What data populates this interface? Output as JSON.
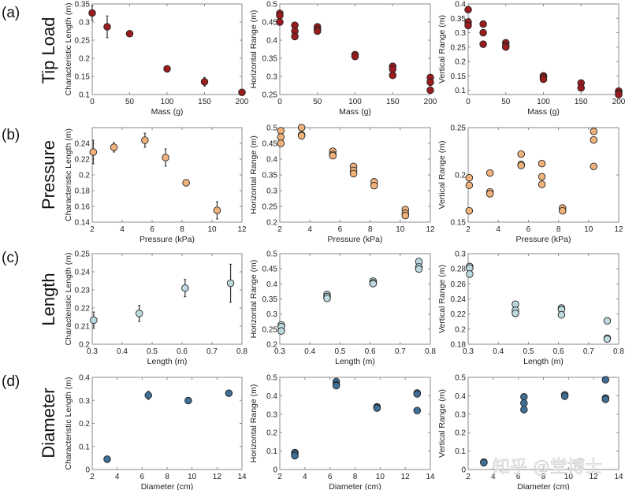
{
  "figure": {
    "rows": [
      {
        "letter": "(a)",
        "label": "Tip Load",
        "color": "#9b1c1f"
      },
      {
        "letter": "(b)",
        "label": "Pressure",
        "color": "#f0b27a"
      },
      {
        "letter": "(c)",
        "label": "Length",
        "color": "#bcd9df"
      },
      {
        "letter": "(d)",
        "label": "Diameter",
        "color": "#3f6e96"
      }
    ],
    "watermark": "知乎 @堂博士",
    "marker_edge_color": "#222222",
    "errorbar_color": "#333333",
    "frame_color": "#8a8a8a"
  },
  "chart_data": [
    {
      "id": "a-char",
      "row": 0,
      "col": 0,
      "type": "scatter",
      "xlabel": "Mass (g)",
      "ylabel": "Characteristic Length (m)",
      "xlim": [
        0,
        200
      ],
      "ylim": [
        0.1,
        0.35
      ],
      "xticks": [
        0,
        50,
        100,
        150,
        200
      ],
      "xticklabels": [
        "0",
        "50",
        "100",
        "150",
        "200"
      ],
      "yticks": [
        0.1,
        0.15,
        0.2,
        0.25,
        0.3,
        0.35
      ],
      "yticklabels": [
        "0.1",
        "0.15",
        "0.2",
        "0.25",
        "0.3",
        "0.35"
      ],
      "points": [
        [
          0,
          0.325
        ],
        [
          20,
          0.287
        ],
        [
          50,
          0.268
        ],
        [
          100,
          0.171
        ],
        [
          150,
          0.135
        ],
        [
          200,
          0.106
        ]
      ],
      "errors": [
        0.02,
        0.03,
        0.0,
        0.0,
        0.012,
        0.0
      ]
    },
    {
      "id": "a-horiz",
      "row": 0,
      "col": 1,
      "type": "scatter",
      "xlabel": "Mass (g)",
      "ylabel": "Horizontal Range (m)",
      "xlim": [
        0,
        200
      ],
      "ylim": [
        0.25,
        0.5
      ],
      "xticks": [
        0,
        50,
        100,
        150,
        200
      ],
      "xticklabels": [
        "0",
        "50",
        "100",
        "150",
        "200"
      ],
      "yticks": [
        0.25,
        0.3,
        0.35,
        0.4,
        0.45,
        0.5
      ],
      "yticklabels": [
        "0.25",
        "0.3",
        "0.35",
        "0.4",
        "0.45",
        "0.5"
      ],
      "points": [
        [
          0,
          0.474
        ],
        [
          0,
          0.468
        ],
        [
          0,
          0.45
        ],
        [
          20,
          0.441
        ],
        [
          20,
          0.425
        ],
        [
          20,
          0.41
        ],
        [
          50,
          0.437
        ],
        [
          50,
          0.43
        ],
        [
          50,
          0.425
        ],
        [
          100,
          0.36
        ],
        [
          100,
          0.355
        ],
        [
          150,
          0.328
        ],
        [
          150,
          0.32
        ],
        [
          150,
          0.303
        ],
        [
          200,
          0.297
        ],
        [
          200,
          0.284
        ],
        [
          200,
          0.262
        ]
      ]
    },
    {
      "id": "a-vert",
      "row": 0,
      "col": 2,
      "type": "scatter",
      "xlabel": "Mass (g)",
      "ylabel": "Vertical Range (m)",
      "xlim": [
        0,
        200
      ],
      "ylim": [
        0.085,
        0.4
      ],
      "xticks": [
        0,
        50,
        100,
        150,
        200
      ],
      "xticklabels": [
        "0",
        "50",
        "100",
        "150",
        "200"
      ],
      "yticks": [
        0.1,
        0.15,
        0.2,
        0.25,
        0.3,
        0.35,
        0.4
      ],
      "yticklabels": [
        "0.1",
        "0.15",
        "0.2",
        "0.25",
        "0.3",
        "0.35",
        "0.4"
      ],
      "points": [
        [
          0,
          0.38
        ],
        [
          0,
          0.337
        ],
        [
          0,
          0.325
        ],
        [
          20,
          0.33
        ],
        [
          20,
          0.3
        ],
        [
          20,
          0.26
        ],
        [
          50,
          0.265
        ],
        [
          50,
          0.255
        ],
        [
          50,
          0.25
        ],
        [
          100,
          0.15
        ],
        [
          100,
          0.145
        ],
        [
          100,
          0.138
        ],
        [
          150,
          0.125
        ],
        [
          150,
          0.108
        ],
        [
          200,
          0.097
        ],
        [
          200,
          0.09
        ],
        [
          200,
          0.085
        ]
      ]
    },
    {
      "id": "b-char",
      "row": 1,
      "col": 0,
      "type": "scatter",
      "xlabel": "Pressure (kPa)",
      "ylabel": "Characteristic Length (m)",
      "xlim": [
        2,
        12
      ],
      "ylim": [
        0.14,
        0.26
      ],
      "xticks": [
        2,
        4,
        6,
        8,
        10,
        12
      ],
      "xticklabels": [
        "2",
        "4",
        "6",
        "8",
        "10",
        "12"
      ],
      "yticks": [
        0.14,
        0.16,
        0.18,
        0.2,
        0.22,
        0.24
      ],
      "yticklabels": [
        "0.14",
        "0.16",
        "0.18",
        "0.2",
        "0.22",
        "0.24"
      ],
      "points": [
        [
          2.07,
          0.229
        ],
        [
          3.45,
          0.235
        ],
        [
          5.52,
          0.244
        ],
        [
          6.9,
          0.222
        ],
        [
          8.27,
          0.19
        ],
        [
          10.34,
          0.155
        ]
      ],
      "errors": [
        0.015,
        0.006,
        0.009,
        0.011,
        0.002,
        0.011
      ]
    },
    {
      "id": "b-horiz",
      "row": 1,
      "col": 1,
      "type": "scatter",
      "xlabel": "Pressure (kPa)",
      "ylabel": "Horizontal Range (m)",
      "xlim": [
        2,
        12
      ],
      "ylim": [
        0.2,
        0.5
      ],
      "xticks": [
        2,
        4,
        6,
        8,
        10,
        12
      ],
      "xticklabels": [
        "2",
        "4",
        "6",
        "8",
        "10",
        "12"
      ],
      "yticks": [
        0.2,
        0.25,
        0.3,
        0.35,
        0.4,
        0.45,
        0.5
      ],
      "yticklabels": [
        "0.2",
        "0.25",
        "0.3",
        "0.35",
        "0.4",
        "0.45",
        "0.5"
      ],
      "points": [
        [
          2.07,
          0.49
        ],
        [
          2.07,
          0.47
        ],
        [
          2.07,
          0.45
        ],
        [
          3.45,
          0.5
        ],
        [
          3.45,
          0.477
        ],
        [
          3.45,
          0.474
        ],
        [
          5.52,
          0.425
        ],
        [
          5.52,
          0.415
        ],
        [
          5.52,
          0.411
        ],
        [
          6.9,
          0.377
        ],
        [
          6.9,
          0.364
        ],
        [
          6.9,
          0.354
        ],
        [
          8.27,
          0.328
        ],
        [
          8.27,
          0.316
        ],
        [
          10.34,
          0.24
        ],
        [
          10.34,
          0.228
        ],
        [
          10.34,
          0.221
        ]
      ]
    },
    {
      "id": "b-vert",
      "row": 1,
      "col": 2,
      "type": "scatter",
      "xlabel": "Pressure (kPa)",
      "ylabel": "Vertical Range (m)",
      "xlim": [
        2,
        12
      ],
      "ylim": [
        0.15,
        0.25
      ],
      "xticks": [
        2,
        4,
        6,
        8,
        10,
        12
      ],
      "xticklabels": [
        "2",
        "4",
        "6",
        "8",
        "10",
        "12"
      ],
      "yticks": [
        0.15,
        0.2,
        0.25
      ],
      "yticklabels": [
        "0.15",
        "0.2",
        "0.25"
      ],
      "points": [
        [
          2.07,
          0.197
        ],
        [
          2.07,
          0.189
        ],
        [
          2.07,
          0.162
        ],
        [
          3.45,
          0.202
        ],
        [
          3.45,
          0.182
        ],
        [
          3.45,
          0.18
        ],
        [
          5.52,
          0.222
        ],
        [
          5.52,
          0.211
        ],
        [
          5.52,
          0.21
        ],
        [
          6.9,
          0.212
        ],
        [
          6.9,
          0.198
        ],
        [
          6.9,
          0.19
        ],
        [
          8.27,
          0.165
        ],
        [
          8.27,
          0.162
        ],
        [
          10.34,
          0.246
        ],
        [
          10.34,
          0.237
        ],
        [
          10.34,
          0.209
        ]
      ]
    },
    {
      "id": "c-char",
      "row": 2,
      "col": 0,
      "type": "scatter",
      "xlabel": "Length (m)",
      "ylabel": "Characteristic Length (m)",
      "xlim": [
        0.3,
        0.8
      ],
      "ylim": [
        0.2,
        0.25
      ],
      "xticks": [
        0.3,
        0.4,
        0.5,
        0.6,
        0.7,
        0.8
      ],
      "xticklabels": [
        "0.3",
        "0.4",
        "0.5",
        "0.6",
        "0.7",
        "0.8"
      ],
      "yticks": [
        0.2,
        0.21,
        0.22,
        0.23,
        0.24,
        0.25
      ],
      "yticklabels": [
        "0.2",
        "0.21",
        "0.22",
        "0.23",
        "0.24",
        "0.25"
      ],
      "points": [
        [
          0.305,
          0.2133
        ],
        [
          0.457,
          0.217
        ],
        [
          0.61,
          0.231
        ],
        [
          0.762,
          0.2337
        ]
      ],
      "errors": [
        0.0045,
        0.0045,
        0.0048,
        0.0105
      ]
    },
    {
      "id": "c-horiz",
      "row": 2,
      "col": 1,
      "type": "scatter",
      "xlabel": "Length (m)",
      "ylabel": "Horizontal Range (m)",
      "xlim": [
        0.3,
        0.8
      ],
      "ylim": [
        0.2,
        0.5
      ],
      "xticks": [
        0.3,
        0.4,
        0.5,
        0.6,
        0.7,
        0.8
      ],
      "xticklabels": [
        "0.3",
        "0.4",
        "0.5",
        "0.6",
        "0.7",
        "0.8"
      ],
      "yticks": [
        0.2,
        0.25,
        0.3,
        0.35,
        0.4,
        0.45,
        0.5
      ],
      "yticklabels": [
        "0.2",
        "0.25",
        "0.3",
        "0.35",
        "0.4",
        "0.45",
        "0.5"
      ],
      "points": [
        [
          0.305,
          0.264
        ],
        [
          0.305,
          0.258
        ],
        [
          0.305,
          0.244
        ],
        [
          0.457,
          0.365
        ],
        [
          0.457,
          0.358
        ],
        [
          0.457,
          0.352
        ],
        [
          0.61,
          0.409
        ],
        [
          0.61,
          0.403
        ],
        [
          0.61,
          0.401
        ],
        [
          0.762,
          0.474
        ],
        [
          0.762,
          0.456
        ],
        [
          0.762,
          0.449
        ]
      ]
    },
    {
      "id": "c-vert",
      "row": 2,
      "col": 2,
      "type": "scatter",
      "xlabel": "Length (m)",
      "ylabel": "Vertical Range (m)",
      "xlim": [
        0.3,
        0.8
      ],
      "ylim": [
        0.18,
        0.3
      ],
      "xticks": [
        0.3,
        0.4,
        0.5,
        0.6,
        0.7,
        0.8
      ],
      "xticklabels": [
        "0.3",
        "0.4",
        "0.5",
        "0.6",
        "0.7",
        "0.8"
      ],
      "yticks": [
        0.18,
        0.2,
        0.22,
        0.24,
        0.26,
        0.28,
        0.3
      ],
      "yticklabels": [
        "0.18",
        "0.2",
        "0.22",
        "0.24",
        "0.26",
        "0.28",
        "0.3"
      ],
      "points": [
        [
          0.305,
          0.283
        ],
        [
          0.305,
          0.281
        ],
        [
          0.305,
          0.273
        ],
        [
          0.457,
          0.233
        ],
        [
          0.457,
          0.225
        ],
        [
          0.457,
          0.221
        ],
        [
          0.61,
          0.228
        ],
        [
          0.61,
          0.226
        ],
        [
          0.61,
          0.219
        ],
        [
          0.762,
          0.211
        ],
        [
          0.762,
          0.188
        ],
        [
          0.762,
          0.187
        ]
      ]
    },
    {
      "id": "d-char",
      "row": 3,
      "col": 0,
      "type": "scatter",
      "xlabel": "Diameter (cm)",
      "ylabel": "Characteristic Length (m)",
      "xlim": [
        2,
        14
      ],
      "ylim": [
        0,
        0.4
      ],
      "xticks": [
        2,
        4,
        6,
        8,
        10,
        12,
        14
      ],
      "xticklabels": [
        "2",
        "4",
        "6",
        "8",
        "10",
        "12",
        "14"
      ],
      "yticks": [
        0,
        0.1,
        0.2,
        0.3,
        0.4
      ],
      "yticklabels": [
        "0",
        "0.1",
        "0.2",
        "0.3",
        "0.4"
      ],
      "points": [
        [
          3.2,
          0.045
        ],
        [
          6.5,
          0.322
        ],
        [
          9.7,
          0.299
        ],
        [
          12.95,
          0.331
        ]
      ],
      "errors": [
        0.0,
        0.018,
        0.0,
        0.0
      ]
    },
    {
      "id": "d-horiz",
      "row": 3,
      "col": 1,
      "type": "scatter",
      "xlabel": "Diameter (cm)",
      "ylabel": "Horizontal Range (m)",
      "xlim": [
        2,
        14
      ],
      "ylim": [
        0,
        0.5
      ],
      "xticks": [
        2,
        4,
        6,
        8,
        10,
        12,
        14
      ],
      "xticklabels": [
        "2",
        "4",
        "6",
        "8",
        "10",
        "12",
        "14"
      ],
      "yticks": [
        0,
        0.1,
        0.2,
        0.3,
        0.4,
        0.5
      ],
      "yticklabels": [
        "0",
        "0.1",
        "0.2",
        "0.3",
        "0.4",
        "0.5"
      ],
      "points": [
        [
          3.2,
          0.092
        ],
        [
          3.2,
          0.085
        ],
        [
          3.2,
          0.075
        ],
        [
          6.5,
          0.477
        ],
        [
          6.5,
          0.46
        ],
        [
          6.5,
          0.455
        ],
        [
          9.75,
          0.34
        ],
        [
          9.75,
          0.337
        ],
        [
          9.75,
          0.333
        ],
        [
          12.95,
          0.415
        ],
        [
          12.95,
          0.41
        ],
        [
          12.95,
          0.32
        ]
      ]
    },
    {
      "id": "d-vert",
      "row": 3,
      "col": 2,
      "type": "scatter",
      "xlabel": "Diameter (cm)",
      "ylabel": "Vertical Range (m)",
      "xlim": [
        2,
        14
      ],
      "ylim": [
        0,
        0.5
      ],
      "xticks": [
        2,
        4,
        6,
        8,
        10,
        12,
        14
      ],
      "xticklabels": [
        "2",
        "4",
        "6",
        "8",
        "10",
        "12",
        "14"
      ],
      "yticks": [
        0,
        0.1,
        0.2,
        0.3,
        0.4,
        0.5
      ],
      "yticklabels": [
        "0",
        "0.1",
        "0.2",
        "0.3",
        "0.4",
        "0.5"
      ],
      "points": [
        [
          3.25,
          0.04
        ],
        [
          3.25,
          0.037
        ],
        [
          6.45,
          0.394
        ],
        [
          6.45,
          0.36
        ],
        [
          6.45,
          0.325
        ],
        [
          9.7,
          0.405
        ],
        [
          9.7,
          0.398
        ],
        [
          12.95,
          0.487
        ],
        [
          12.95,
          0.388
        ],
        [
          12.95,
          0.381
        ]
      ]
    }
  ]
}
